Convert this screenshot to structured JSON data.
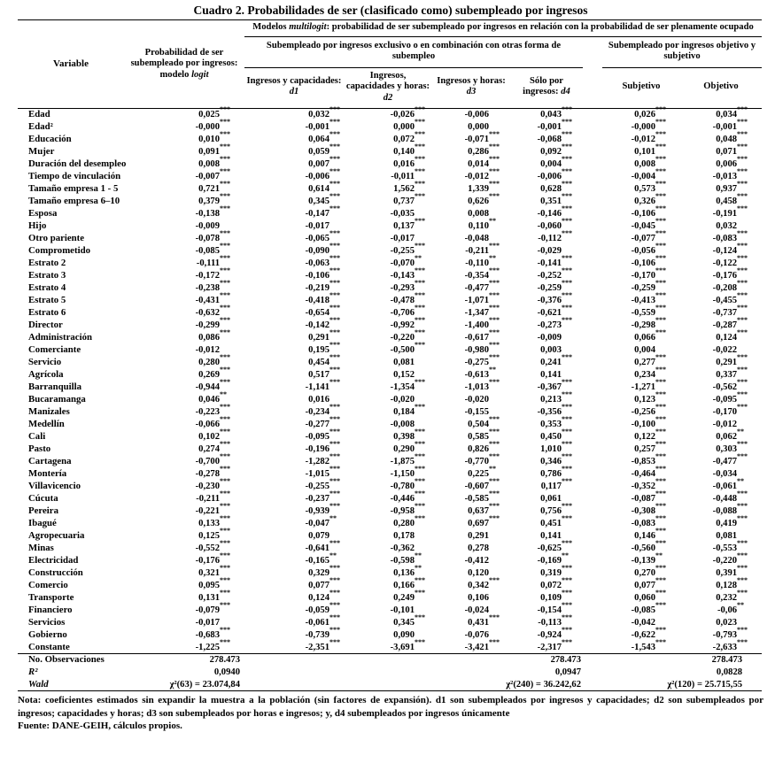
{
  "title": "Cuadro 2. Probabilidades de ser (clasificado como) subempleado por ingresos",
  "table": {
    "header": {
      "variable": "Variable",
      "logit": {
        "text": "Probabilidad de ser subempleado por ingresos: modelo",
        "italic": "logit"
      },
      "multilogit": {
        "prefix": "Modelos",
        "italic": "multilogit",
        "suffix": ": probabilidad de ser subempleado por ingresos en relación con la probabilidad de ser plenamente ocupado"
      },
      "group_exclusive": "Subempleado por ingresos exclusivo o en combinación con otras forma de subempleo",
      "group_objetivo": "Subempleado por ingresos objetivo y subjetivo",
      "columns": [
        {
          "text": "Ingresos y capacidades:",
          "italic": "d1"
        },
        {
          "text": "Ingresos, capacidades y horas:",
          "italic": "d2"
        },
        {
          "text": "Ingresos y horas:",
          "italic": "d3"
        },
        {
          "text": "Sólo por ingresos:",
          "italic": "d4"
        },
        {
          "text": "Subjetivo",
          "italic": ""
        },
        {
          "text": "Objetivo",
          "italic": ""
        }
      ]
    },
    "rows": [
      {
        "label": "Edad",
        "values": [
          "0,025***",
          "0,032***",
          "-0,026***",
          "-0,006",
          "0,043***",
          "0,026***",
          "0,034***"
        ]
      },
      {
        "label": "Edad²",
        "values": [
          "-0,000***",
          "-0,001***",
          "0,000***",
          "0,000",
          "-0,001***",
          "-0,000***",
          "-0,001***"
        ]
      },
      {
        "label": "Educación",
        "values": [
          "0,010***",
          "0,064***",
          "0,072***",
          "-0,071***",
          "-0,068***",
          "-0,012***",
          "0,048***"
        ]
      },
      {
        "label": "Mujer",
        "values": [
          "0,091***",
          "0,059***",
          "0,140***",
          "0,286***",
          "0,092***",
          "0,101***",
          "0,071***"
        ]
      },
      {
        "label": "Duración del desempleo",
        "values": [
          "0,008***",
          "0,007***",
          "0,016***",
          "0,014***",
          "0,004***",
          "0,008***",
          "0,006***"
        ]
      },
      {
        "label": "Tiempo de vinculación",
        "values": [
          "-0,007***",
          "-0,006***",
          "-0,011***",
          "-0,012***",
          "-0,006***",
          "-0,004***",
          "-0,013***"
        ]
      },
      {
        "label": "Tamaño empresa 1 - 5",
        "values": [
          "0,721***",
          "0,614***",
          "1,562***",
          "1,339***",
          "0,628***",
          "0,573***",
          "0,937***"
        ]
      },
      {
        "label": "Tamaño empresa 6–10",
        "values": [
          "0,379***",
          "0,345***",
          "0,737***",
          "0,626***",
          "0,351***",
          "0,326***",
          "0,458***"
        ]
      },
      {
        "label": "Esposa",
        "values": [
          "-0,138***",
          "-0,147***",
          "-0,035",
          "0,008",
          "-0,146***",
          "-0,106***",
          "-0,191***"
        ]
      },
      {
        "label": "Hijo",
        "values": [
          "-0,009",
          "-0,017",
          "0,137***",
          "0,110**",
          "-0,060***",
          "-0,045***",
          "0,032"
        ]
      },
      {
        "label": "Otro pariente",
        "values": [
          "-0,078***",
          "-0,065***",
          "-0,017",
          "-0,048",
          "-0,112***",
          "-0,077***",
          "-0,083***"
        ]
      },
      {
        "label": "Comprometido",
        "values": [
          "-0,085***",
          "-0,090***",
          "-0,255***",
          "-0,211***",
          "-0,029",
          "-0,056***",
          "-0,124***"
        ]
      },
      {
        "label": "Estrato 2",
        "values": [
          "-0,111***",
          "-0,063***",
          "-0,070**",
          "-0,110**",
          "-0,141***",
          "-0,106***",
          "-0,122***"
        ]
      },
      {
        "label": "Estrato 3",
        "values": [
          "-0,172***",
          "-0,106***",
          "-0,143***",
          "-0,354***",
          "-0,252***",
          "-0,170***",
          "-0,176***"
        ]
      },
      {
        "label": "Estrato 4",
        "values": [
          "-0,238***",
          "-0,219***",
          "-0,293***",
          "-0,477***",
          "-0,259***",
          "-0,259***",
          "-0,208***"
        ]
      },
      {
        "label": "Estrato 5",
        "values": [
          "-0,431***",
          "-0,418***",
          "-0,478***",
          "-1,071***",
          "-0,376***",
          "-0,413***",
          "-0,455***"
        ]
      },
      {
        "label": "Estrato 6",
        "values": [
          "-0,632***",
          "-0,654***",
          "-0,706***",
          "-1,347***",
          "-0,621***",
          "-0,559***",
          "-0,737***"
        ]
      },
      {
        "label": "Director",
        "values": [
          "-0,299***",
          "-0,142***",
          "-0,992***",
          "-1,400***",
          "-0,273***",
          "-0,298***",
          "-0,287***"
        ]
      },
      {
        "label": "Administración",
        "values": [
          "0,086***",
          "0,291***",
          "-0,220***",
          "-0,617***",
          "-0,009",
          "0,066***",
          "0,124***"
        ]
      },
      {
        "label": "Comerciante",
        "values": [
          "-0,012",
          "0,195***",
          "-0,500***",
          "-0,980***",
          "0,003",
          "0,004",
          "-0,022"
        ]
      },
      {
        "label": "Servicio",
        "values": [
          "0,280***",
          "0,454***",
          "0,081",
          "-0,275***",
          "0,241***",
          "0,277***",
          "0,291***"
        ]
      },
      {
        "label": "Agrícola",
        "values": [
          "0,269***",
          "0,517***",
          "0,152",
          "-0,613**",
          "0,141",
          "0,234***",
          "0,337***"
        ]
      },
      {
        "label": "Barranquilla",
        "values": [
          "-0,944***",
          "-1,141***",
          "-1,354***",
          "-1,013***",
          "-0,367***",
          "-1,271***",
          "-0,562***"
        ]
      },
      {
        "label": "Bucaramanga",
        "values": [
          "0,046**",
          "0,016",
          "-0,020",
          "-0,020",
          "0,213***",
          "0,123***",
          "-0,095***"
        ]
      },
      {
        "label": "Manizales",
        "values": [
          "-0,223***",
          "-0,234***",
          "0,184***",
          "-0,155",
          "-0,356***",
          "-0,256***",
          "-0,170***"
        ]
      },
      {
        "label": "Medellín",
        "values": [
          "-0,066***",
          "-0,277***",
          "-0,008",
          "0,504***",
          "0,353***",
          "-0,100***",
          "-0,012"
        ]
      },
      {
        "label": "Cali",
        "values": [
          "0,102***",
          "-0,095***",
          "0,398***",
          "0,585***",
          "0,450***",
          "0,122***",
          "0,062**"
        ]
      },
      {
        "label": "Pasto",
        "values": [
          "0,274***",
          "-0,196***",
          "0,290***",
          "0,826***",
          "1,010***",
          "0,257***",
          "0,303***"
        ]
      },
      {
        "label": "Cartagena",
        "values": [
          "-0,700***",
          "-1,282***",
          "-1,875***",
          "-0,770***",
          "0,346***",
          "-0,853***",
          "-0,477***"
        ]
      },
      {
        "label": "Montería",
        "values": [
          "-0,278***",
          "-1,015***",
          "-1,150***",
          "0,225**",
          "0,786***",
          "-0,464***",
          "-0,034"
        ]
      },
      {
        "label": "Villavicencio",
        "values": [
          "-0,230***",
          "-0,255***",
          "-0,780***",
          "-0,607***",
          "0,117***",
          "-0,352***",
          "-0,061**"
        ]
      },
      {
        "label": "Cúcuta",
        "values": [
          "-0,211***",
          "-0,237***",
          "-0,446***",
          "-0,585***",
          "0,061",
          "-0,087***",
          "-0,448***"
        ]
      },
      {
        "label": "Pereira",
        "values": [
          "-0,221***",
          "-0,939***",
          "-0,958***",
          "0,637***",
          "0,756***",
          "-0,308***",
          "-0,088***"
        ]
      },
      {
        "label": "Ibagué",
        "values": [
          "0,133***",
          "-0,047**",
          "0,280***",
          "0,697***",
          "0,451***",
          "-0,083***",
          "0,419***"
        ]
      },
      {
        "label": "Agropecuaria",
        "values": [
          "0,125***",
          "0,079",
          "0,178",
          "0,291",
          "0,141",
          "0,146***",
          "0,081"
        ]
      },
      {
        "label": "Minas",
        "values": [
          "-0,552***",
          "-0,641***",
          "-0,362",
          "0,278",
          "-0,625***",
          "-0,560***",
          "-0,553***"
        ]
      },
      {
        "label": "Electricidad",
        "values": [
          "-0,176***",
          "-0,165**",
          "-0,598**",
          "-0,412",
          "-0,169**",
          "-0,139**",
          "-0,220***"
        ]
      },
      {
        "label": "Construcción",
        "values": [
          "0,321***",
          "0,329***",
          "0,136**",
          "0,120",
          "0,319***",
          "0,270***",
          "0,391***"
        ]
      },
      {
        "label": "Comercio",
        "values": [
          "0,095***",
          "0,077***",
          "0,166***",
          "0,342***",
          "0,072***",
          "0,077***",
          "0,128***"
        ]
      },
      {
        "label": "Transporte",
        "values": [
          "0,131***",
          "0,124***",
          "0,249***",
          "0,106",
          "0,109***",
          "0,060***",
          "0,232***"
        ]
      },
      {
        "label": "Financiero",
        "values": [
          "-0,079***",
          "-0,059***",
          "-0,101",
          "-0,024",
          "-0,154***",
          "-0,085***",
          "-0,06**"
        ]
      },
      {
        "label": "Servicios",
        "values": [
          "-0,017",
          "-0,061***",
          "0,345***",
          "0,431***",
          "-0,113***",
          "-0,042",
          "0,023"
        ]
      },
      {
        "label": "Gobierno",
        "values": [
          "-0,683***",
          "-0,739***",
          "0,090",
          "-0,076",
          "-0,924***",
          "-0,622***",
          "-0,793***"
        ]
      },
      {
        "label": "Constante",
        "values": [
          "-1,225***",
          "-2,351***",
          "-3,691***",
          "-3,421***",
          "-2,317***",
          "-1,543***",
          "-2,633***"
        ]
      }
    ],
    "stats": [
      {
        "label": "No. Observaciones",
        "italic": false,
        "values": [
          "278.473",
          "278.473",
          "278.473"
        ]
      },
      {
        "label": "R²",
        "italic": true,
        "values": [
          "0,0940",
          "0,0947",
          "0,0828"
        ]
      },
      {
        "label": "Wald",
        "italic": true,
        "values": [
          "χ²(63) = 23.074,84",
          "χ²(240) = 36.242,62",
          "χ²(120) = 25.715,55"
        ]
      }
    ]
  },
  "notes": {
    "nota": "Nota: coeficientes estimados sin expandir la muestra a la población (sin factores de expansión). d1 son subempleados por ingresos y capacidades; d2 son subempleados por ingresos; capacidades y horas; d3 son subempleados por horas e ingresos; y, d4 subempleados por ingresos únicamente",
    "fuente": "Fuente: DANE-GEIH, cálculos propios."
  }
}
